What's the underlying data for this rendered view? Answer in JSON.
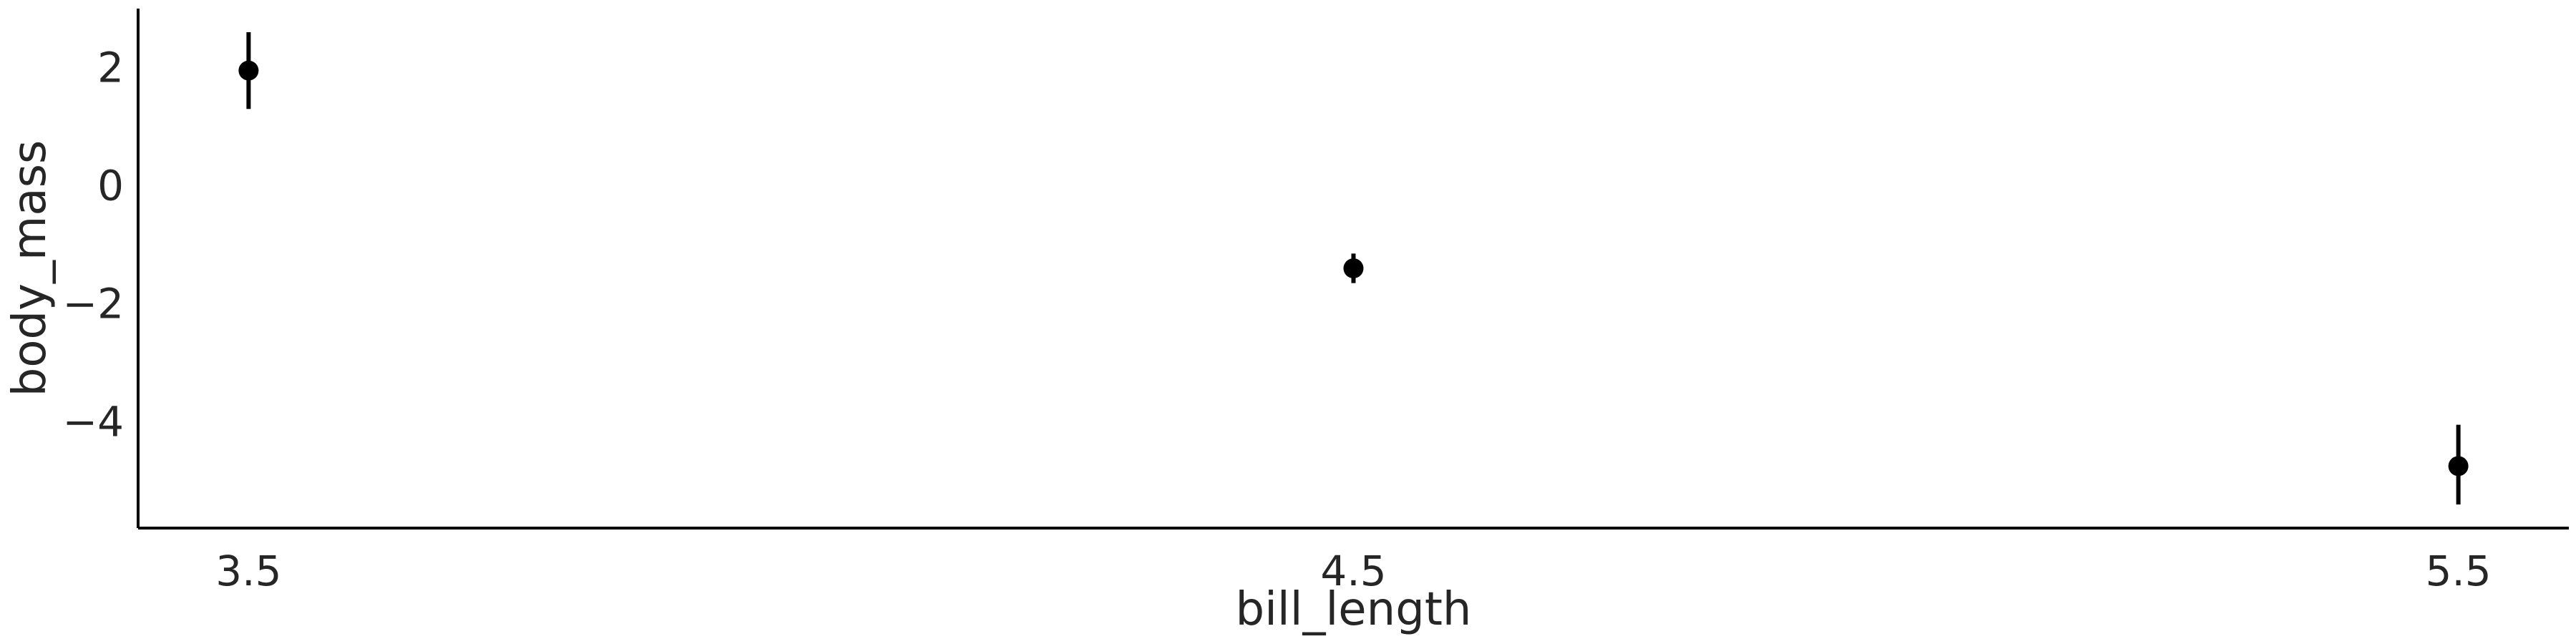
{
  "chart_data": {
    "type": "scatter",
    "title": "",
    "xlabel": "bill_length",
    "ylabel": "body_mass",
    "x_ticks": [
      3.5,
      4.5,
      5.5
    ],
    "x_tick_labels": [
      "3.5",
      "4.5",
      "5.5"
    ],
    "y_ticks": [
      2,
      0,
      -2,
      -4
    ],
    "y_tick_labels": [
      "2",
      "0",
      "−2",
      "−4"
    ],
    "xlim": [
      3.4,
      5.6
    ],
    "ylim": [
      -5.8,
      3.0
    ],
    "grid": false,
    "legend": "none",
    "series": [
      {
        "points": [
          {
            "x": 3.5,
            "y": 1.95,
            "lower": 1.3,
            "upper": 2.6
          },
          {
            "x": 4.5,
            "y": -1.4,
            "lower": -1.65,
            "upper": -1.15
          },
          {
            "x": 5.5,
            "y": -4.75,
            "lower": -5.4,
            "upper": -4.05
          }
        ]
      }
    ]
  },
  "colors": {
    "marker": "#000000",
    "axis": "#000000",
    "text": "#262626"
  }
}
